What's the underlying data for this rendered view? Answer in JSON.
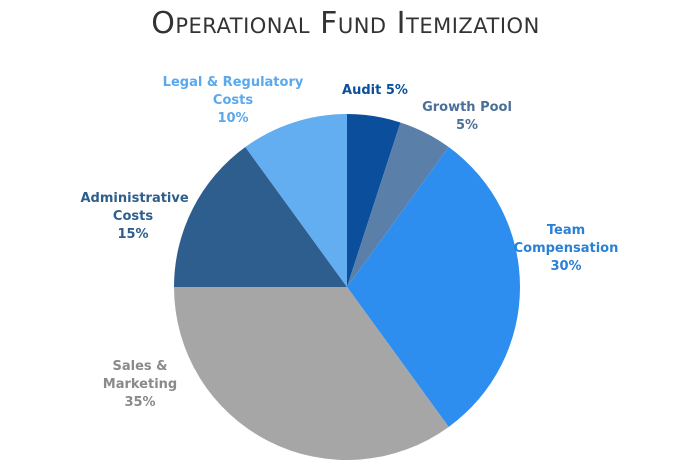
{
  "chart_data": {
    "type": "pie",
    "title": "Operational Fund Itemization",
    "categories": [
      "Audit",
      "Growth Pool",
      "Team Compensation",
      "Sales & Marketing",
      "Administrative Costs",
      "Legal & Regulatory Costs"
    ],
    "values": [
      5,
      5,
      30,
      35,
      15,
      10
    ],
    "value_labels": [
      "5%",
      "5%",
      "30%",
      "35%",
      "15%",
      "10%"
    ],
    "colors": [
      "#0b4f9c",
      "#5a7fa8",
      "#2e8ef0",
      "#a6a6a6",
      "#2e5e8e",
      "#62aef0"
    ]
  }
}
